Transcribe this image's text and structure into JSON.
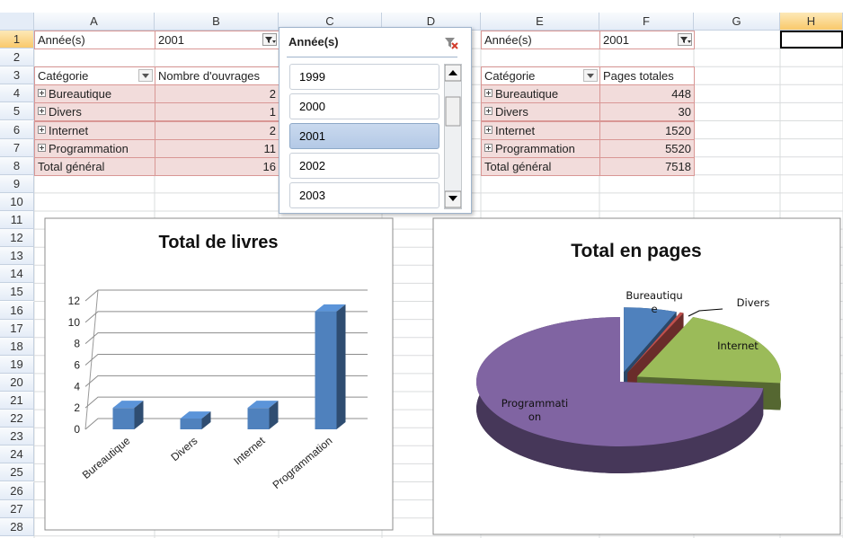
{
  "sheet": {
    "columns": [
      "A",
      "B",
      "C",
      "D",
      "E",
      "F",
      "G",
      "H"
    ],
    "rows": [
      1,
      2,
      3,
      4,
      5,
      6,
      7,
      8,
      9,
      10,
      11,
      12,
      13,
      14,
      15,
      16,
      17,
      18,
      19,
      20,
      21,
      22,
      23,
      24,
      25,
      26,
      27,
      28
    ]
  },
  "pivot_books": {
    "filter_label": "Année(s)",
    "filter_value": "2001",
    "headers": [
      "Catégorie",
      "Nombre d'ouvrages"
    ],
    "rows": [
      {
        "label": "Bureautique",
        "value": 2
      },
      {
        "label": "Divers",
        "value": 1
      },
      {
        "label": "Internet",
        "value": 2
      },
      {
        "label": "Programmation",
        "value": 11
      }
    ],
    "total_label": "Total général",
    "total": 16
  },
  "pivot_pages": {
    "filter_label": "Année(s)",
    "filter_value": "2001",
    "headers": [
      "Catégorie",
      "Pages totales"
    ],
    "rows": [
      {
        "label": "Bureautique",
        "value": 448
      },
      {
        "label": "Divers",
        "value": 30
      },
      {
        "label": "Internet",
        "value": 1520
      },
      {
        "label": "Programmation",
        "value": 5520
      }
    ],
    "total_label": "Total général",
    "total": 7518
  },
  "slicer": {
    "title": "Année(s)",
    "items": [
      "1999",
      "2000",
      "2001",
      "2002",
      "2003"
    ],
    "selected": "2001"
  },
  "charts": [
    {
      "type": "bar",
      "title": "Total de livres",
      "categories": [
        "Bureautique",
        "Divers",
        "Internet",
        "Programmation"
      ],
      "values": [
        2,
        1,
        2,
        11
      ],
      "color": "#4f81bd",
      "ylim": [
        0,
        12
      ],
      "yticks": [
        0,
        2,
        4,
        6,
        8,
        10,
        12
      ],
      "grid": true
    },
    {
      "type": "pie",
      "title": "Total en pages",
      "categories": [
        "Bureautique",
        "Divers",
        "Internet",
        "Programmation"
      ],
      "values": [
        448,
        30,
        1520,
        5520
      ],
      "colors": [
        "#4f81bd",
        "#c0504d",
        "#9bbb59",
        "#8064a2"
      ]
    }
  ]
}
